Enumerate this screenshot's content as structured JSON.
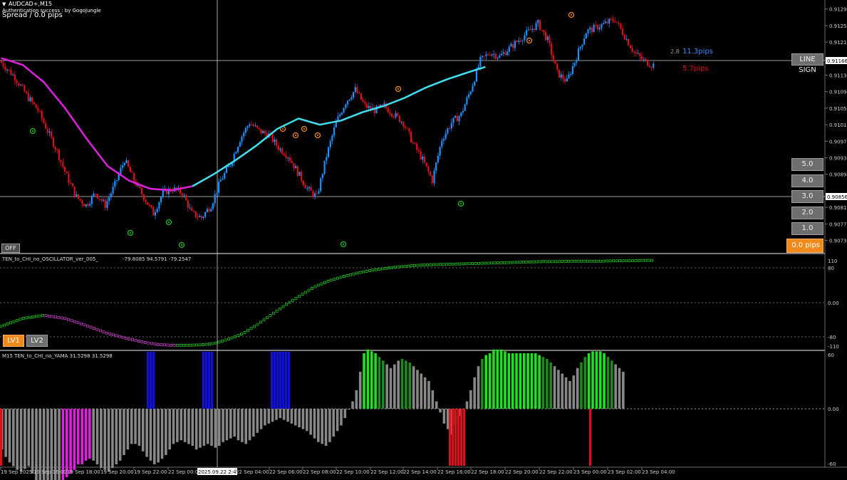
{
  "symbol": "AUDCAD+,M15",
  "auth_text": "Authentication success : by GogoJungle",
  "spread_text": "Spread / 0.0 pips",
  "price_ticks": [
    "0.91295",
    "0.91255",
    "0.91215",
    "0.91175",
    "0.91166",
    "0.91135",
    "0.91095",
    "0.91055",
    "0.91015",
    "0.90975",
    "0.90935",
    "0.90895",
    "0.90856",
    "0.90815",
    "0.90775",
    "0.90735"
  ],
  "current_price_label": "0.91166",
  "line_price_label": "0.90856",
  "info": {
    "small": "2.8",
    "pips_blue": "11.3pips",
    "pips_red": "5.7pips"
  },
  "buttons": {
    "line_sign": "LINE SIGN",
    "levels": [
      "5.0",
      "4.0",
      "3.0",
      "2.0",
      "1.0"
    ],
    "orange_label": "0.0 pips",
    "off": "OFF",
    "lv1": "LV1",
    "lv2": "LV2"
  },
  "colors": {
    "up": "#1e90ff",
    "down": "#e0101a",
    "ma_early": "#e020e0",
    "ma_late": "#40e0f0",
    "osc_up": "#20c020",
    "osc_down": "#c040c0"
  },
  "oscillator": {
    "title": "TEN_to_CHI_no_OSCILLATOR_ver_005_",
    "values_text": "-79.8085 94.5791 -79.2547",
    "ticks": [
      "110",
      "80",
      "0.00",
      "-80",
      "-110"
    ]
  },
  "yama": {
    "title": "M15  TEN_to_CHI_no_YAMA  31.5298 31.5298",
    "ticks": [
      "60",
      "0.00",
      "-60"
    ]
  },
  "time_labels": [
    "19 Sep 2025",
    "19 Sep 16:00",
    "19 Sep 18:00",
    "19 Sep 20:00",
    "19 Sep 22:00",
    "22 Sep 00:00",
    "2025.09.22 2:45",
    "22 Sep 04:00",
    "22 Sep 06:00",
    "22 Sep 08:00",
    "22 Sep 10:00",
    "22 Sep 12:00",
    "22 Sep 14:00",
    "22 Sep 16:00",
    "22 Sep 18:00",
    "22 Sep 20:00",
    "22 Sep 22:00",
    "23 Sep 00:00",
    "23 Sep 02:00",
    "23 Sep 04:00"
  ],
  "chart_data": [
    {
      "type": "candlestick",
      "title": "AUDCAD+,M15",
      "ylim": [
        0.9071,
        0.9131
      ],
      "price_path": [
        [
          0,
          0.9117
        ],
        [
          8,
          0.9113
        ],
        [
          15,
          0.9108
        ],
        [
          20,
          0.9105
        ],
        [
          25,
          0.91
        ],
        [
          30,
          0.9095
        ],
        [
          35,
          0.9089
        ],
        [
          40,
          0.9084
        ],
        [
          45,
          0.9082
        ],
        [
          50,
          0.9085
        ],
        [
          55,
          0.9082
        ],
        [
          60,
          0.9087
        ],
        [
          65,
          0.9093
        ],
        [
          70,
          0.9088
        ],
        [
          75,
          0.9084
        ],
        [
          80,
          0.908
        ],
        [
          85,
          0.9085
        ],
        [
          90,
          0.9086
        ],
        [
          95,
          0.9085
        ],
        [
          100,
          0.908
        ],
        [
          105,
          0.9079
        ],
        [
          110,
          0.9082
        ],
        [
          115,
          0.9088
        ],
        [
          120,
          0.9092
        ],
        [
          125,
          0.9098
        ],
        [
          130,
          0.9102
        ],
        [
          135,
          0.91
        ],
        [
          140,
          0.9099
        ],
        [
          145,
          0.9096
        ],
        [
          150,
          0.9094
        ],
        [
          155,
          0.909
        ],
        [
          160,
          0.9086
        ],
        [
          165,
          0.9084
        ],
        [
          170,
          0.9094
        ],
        [
          175,
          0.9102
        ],
        [
          180,
          0.9107
        ],
        [
          185,
          0.911
        ],
        [
          190,
          0.9106
        ],
        [
          195,
          0.9105
        ],
        [
          200,
          0.9106
        ],
        [
          205,
          0.9104
        ],
        [
          210,
          0.9102
        ],
        [
          215,
          0.9097
        ],
        [
          220,
          0.9093
        ],
        [
          225,
          0.9088
        ],
        [
          230,
          0.9098
        ],
        [
          235,
          0.9102
        ],
        [
          240,
          0.9104
        ],
        [
          245,
          0.911
        ],
        [
          250,
          0.9117
        ],
        [
          255,
          0.9119
        ],
        [
          260,
          0.9118
        ],
        [
          265,
          0.912
        ],
        [
          270,
          0.9122
        ],
        [
          275,
          0.9124
        ],
        [
          280,
          0.9126
        ],
        [
          285,
          0.9122
        ],
        [
          290,
          0.9114
        ],
        [
          295,
          0.9112
        ],
        [
          300,
          0.9118
        ],
        [
          305,
          0.9124
        ],
        [
          310,
          0.9125
        ],
        [
          315,
          0.9126
        ],
        [
          320,
          0.9127
        ],
        [
          325,
          0.9123
        ],
        [
          330,
          0.9119
        ],
        [
          335,
          0.9117
        ],
        [
          339,
          0.9116
        ]
      ],
      "moving_average": [
        [
          0,
          0.91176
        ],
        [
          20,
          0.9116
        ],
        [
          40,
          0.91118
        ],
        [
          60,
          0.91055
        ],
        [
          80,
          0.90982
        ],
        [
          100,
          0.90915
        ],
        [
          120,
          0.9088
        ],
        [
          140,
          0.9086
        ],
        [
          160,
          0.90856
        ],
        [
          180,
          0.90866
        ],
        [
          200,
          0.90895
        ],
        [
          220,
          0.90928
        ],
        [
          240,
          0.90964
        ],
        [
          260,
          0.91005
        ],
        [
          280,
          0.9103
        ],
        [
          300,
          0.91015
        ],
        [
          320,
          0.91025
        ],
        [
          340,
          0.91045
        ],
        [
          360,
          0.9106
        ],
        [
          380,
          0.9108
        ],
        [
          400,
          0.91105
        ],
        [
          420,
          0.91125
        ],
        [
          440,
          0.91142
        ],
        [
          456,
          0.91155
        ]
      ],
      "horizontal_lines": [
        0.91166,
        0.90856
      ]
    },
    {
      "type": "line",
      "title": "TEN_to_CHI_no_OSCILLATOR_ver_005_",
      "ylim": [
        -110,
        110
      ],
      "series": [
        {
          "points": [
            [
              0,
              -60
            ],
            [
              30,
              -40
            ],
            [
              60,
              -32
            ],
            [
              90,
              -40
            ],
            [
              120,
              -58
            ],
            [
              150,
              -78
            ],
            [
              180,
              -92
            ],
            [
              200,
              -100
            ],
            [
              220,
              -106
            ],
            [
              240,
              -108
            ],
            [
              260,
              -108
            ],
            [
              280,
              -107
            ],
            [
              300,
              -103
            ],
            [
              320,
              -92
            ],
            [
              340,
              -78
            ],
            [
              360,
              -55
            ],
            [
              380,
              -30
            ],
            [
              400,
              -5
            ],
            [
              420,
              18
            ],
            [
              440,
              40
            ],
            [
              460,
              55
            ],
            [
              480,
              66
            ],
            [
              500,
              75
            ],
            [
              520,
              82
            ],
            [
              540,
              87
            ],
            [
              560,
              91
            ],
            [
              580,
              94
            ],
            [
              600,
              96
            ],
            [
              620,
              97
            ],
            [
              640,
              98
            ],
            [
              660,
              99
            ],
            [
              680,
              100
            ],
            [
              700,
              101
            ],
            [
              720,
              102
            ],
            [
              740,
              103
            ],
            [
              760,
              104
            ],
            [
              780,
              104
            ],
            [
              800,
              105
            ],
            [
              820,
              105
            ],
            [
              840,
              105
            ],
            [
              860,
              106
            ],
            [
              880,
              106
            ],
            [
              900,
              107
            ],
            [
              915,
              107
            ]
          ]
        }
      ]
    },
    {
      "type": "bar",
      "title": "TEN_to_CHI_no_YAMA",
      "ylim": [
        -60,
        60
      ],
      "bar_values": [
        -44,
        -52,
        -58,
        -62,
        -66,
        -68,
        -65,
        -62,
        -70,
        -78,
        -84,
        -86,
        -88,
        -88,
        -86,
        -82,
        -78,
        -74,
        -70,
        -66,
        -60,
        -60,
        -56,
        -54,
        -56,
        -60,
        -64,
        -66,
        -68,
        -64,
        -60,
        -56,
        -50,
        -44,
        -38,
        -38,
        -40,
        -46,
        -52,
        -56,
        -60,
        -58,
        -54,
        -50,
        -44,
        -38,
        -36,
        -34,
        -36,
        -38,
        -40,
        -44,
        -42,
        -40,
        -38,
        -40,
        -42,
        -40,
        -36,
        -34,
        -32,
        -30,
        -34,
        -36,
        -38,
        -34,
        -30,
        -26,
        -22,
        -18,
        -16,
        -14,
        -12,
        -10,
        -12,
        -14,
        -16,
        -18,
        -20,
        -22,
        -24,
        -28,
        -32,
        -36,
        -38,
        -40,
        -36,
        -30,
        -24,
        -18,
        -10,
        0,
        8,
        20,
        40,
        60,
        64,
        62,
        60,
        56,
        52,
        48,
        44,
        48,
        52,
        54,
        52,
        50,
        46,
        42,
        38,
        34,
        30,
        20,
        8,
        -4,
        -16,
        -22,
        -28,
        -18,
        -8,
        0,
        8,
        20,
        34,
        46,
        54,
        58,
        60,
        64,
        64,
        64,
        62,
        60,
        60,
        60,
        60,
        60,
        60,
        60,
        60,
        58,
        56,
        54,
        50,
        46,
        42,
        38,
        34,
        30,
        36,
        44,
        50,
        56,
        60,
        62,
        62,
        62,
        60,
        56,
        52,
        48,
        44,
        40
      ]
    }
  ]
}
